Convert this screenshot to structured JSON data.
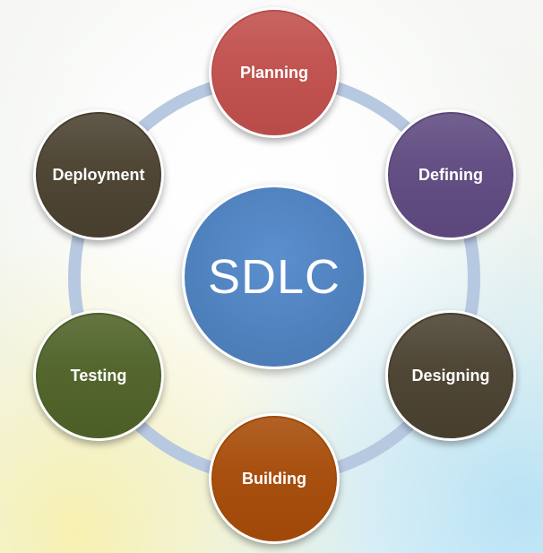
{
  "diagram": {
    "center": {
      "label": "SDLC",
      "color": "#4f81bd"
    },
    "nodes": [
      {
        "label": "Planning",
        "color": "#c04f4c"
      },
      {
        "label": "Defining",
        "color": "#5f4a80"
      },
      {
        "label": "Designing",
        "color": "#4a4130"
      },
      {
        "label": "Building",
        "color": "#a64b08"
      },
      {
        "label": "Testing",
        "color": "#4f6228"
      },
      {
        "label": "Deployment",
        "color": "#4a4130"
      }
    ],
    "ring_color": "#b7c8e1"
  }
}
